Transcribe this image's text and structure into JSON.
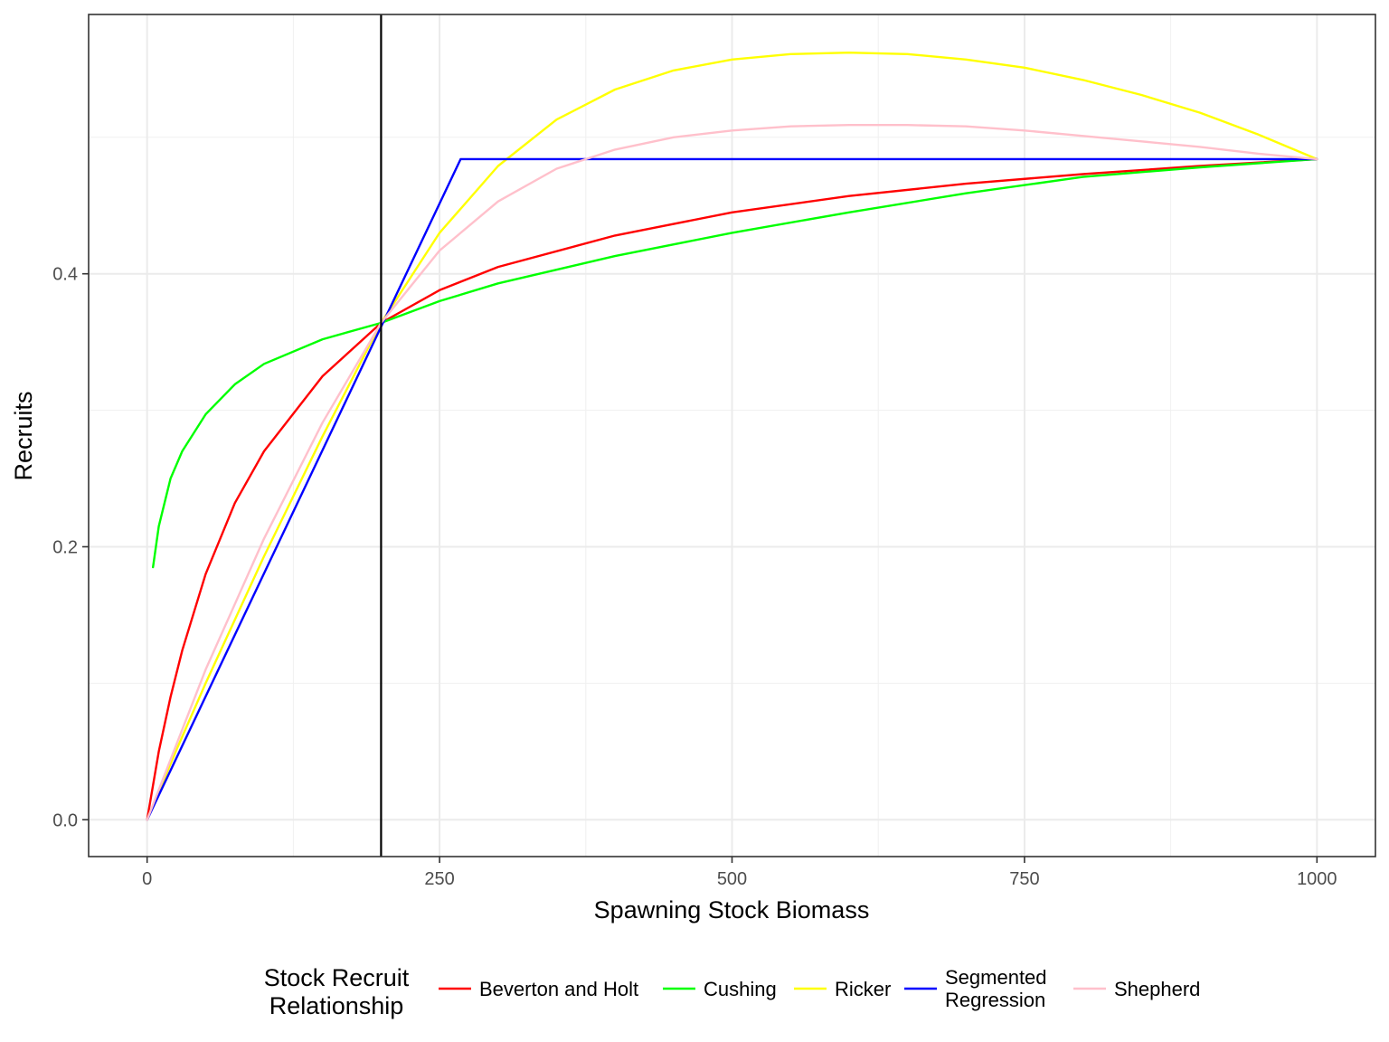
{
  "chart_data": {
    "type": "line",
    "xlabel": "Spawning Stock Biomass",
    "ylabel": "Recruits",
    "xlim": [
      -50,
      1050
    ],
    "ylim": [
      -0.027,
      0.59
    ],
    "x_ticks": [
      0,
      250,
      500,
      750,
      1000
    ],
    "x_tick_labels": [
      "0",
      "250",
      "500",
      "750",
      "1000"
    ],
    "y_ticks": [
      0.0,
      0.2,
      0.4
    ],
    "y_tick_labels": [
      "0.0",
      "0.2",
      "0.4"
    ],
    "grid": true,
    "vline": 200,
    "legend": {
      "position": "bottom",
      "title_lines": [
        "Stock Recruit",
        "Relationship"
      ]
    },
    "series": [
      {
        "name": "Beverton and Holt",
        "label_lines": [
          "Beverton and Holt"
        ],
        "color": "#ff0000",
        "x": [
          0,
          10,
          20,
          30,
          50,
          75,
          100,
          150,
          200,
          250,
          300,
          400,
          500,
          600,
          700,
          800,
          900,
          1000
        ],
        "y": [
          0.0,
          0.05,
          0.09,
          0.124,
          0.18,
          0.232,
          0.27,
          0.325,
          0.364,
          0.388,
          0.405,
          0.428,
          0.445,
          0.457,
          0.466,
          0.473,
          0.479,
          0.484
        ]
      },
      {
        "name": "Cushing",
        "label_lines": [
          "Cushing"
        ],
        "color": "#00ff00",
        "x": [
          5,
          10,
          20,
          30,
          50,
          75,
          100,
          150,
          200,
          250,
          300,
          400,
          500,
          600,
          700,
          800,
          900,
          1000
        ],
        "y": [
          0.185,
          0.215,
          0.25,
          0.27,
          0.297,
          0.319,
          0.334,
          0.352,
          0.364,
          0.38,
          0.393,
          0.413,
          0.43,
          0.445,
          0.459,
          0.471,
          0.478,
          0.484
        ]
      },
      {
        "name": "Ricker",
        "label_lines": [
          "Ricker"
        ],
        "color": "#ffff00",
        "x": [
          0,
          25,
          50,
          100,
          150,
          200,
          250,
          300,
          350,
          400,
          450,
          500,
          550,
          600,
          650,
          700,
          750,
          800,
          850,
          900,
          950,
          1000
        ],
        "y": [
          0.0,
          0.051,
          0.1,
          0.193,
          0.281,
          0.364,
          0.43,
          0.479,
          0.513,
          0.535,
          0.549,
          0.557,
          0.561,
          0.562,
          0.561,
          0.557,
          0.551,
          0.542,
          0.531,
          0.518,
          0.502,
          0.484
        ]
      },
      {
        "name": "Segmented Regression",
        "label_lines": [
          "Segmented",
          "Regression"
        ],
        "color": "#0000ff",
        "x": [
          0,
          268,
          1000
        ],
        "y": [
          0.0,
          0.484,
          0.484
        ]
      },
      {
        "name": "Shepherd",
        "label_lines": [
          "Shepherd"
        ],
        "color": "#ffc0cb",
        "x": [
          0,
          25,
          50,
          100,
          150,
          200,
          250,
          300,
          350,
          400,
          450,
          500,
          550,
          600,
          650,
          700,
          750,
          800,
          850,
          900,
          950,
          1000
        ],
        "y": [
          0.0,
          0.055,
          0.11,
          0.206,
          0.291,
          0.364,
          0.417,
          0.453,
          0.477,
          0.491,
          0.5,
          0.505,
          0.508,
          0.509,
          0.509,
          0.508,
          0.505,
          0.501,
          0.497,
          0.493,
          0.488,
          0.484
        ]
      }
    ]
  }
}
